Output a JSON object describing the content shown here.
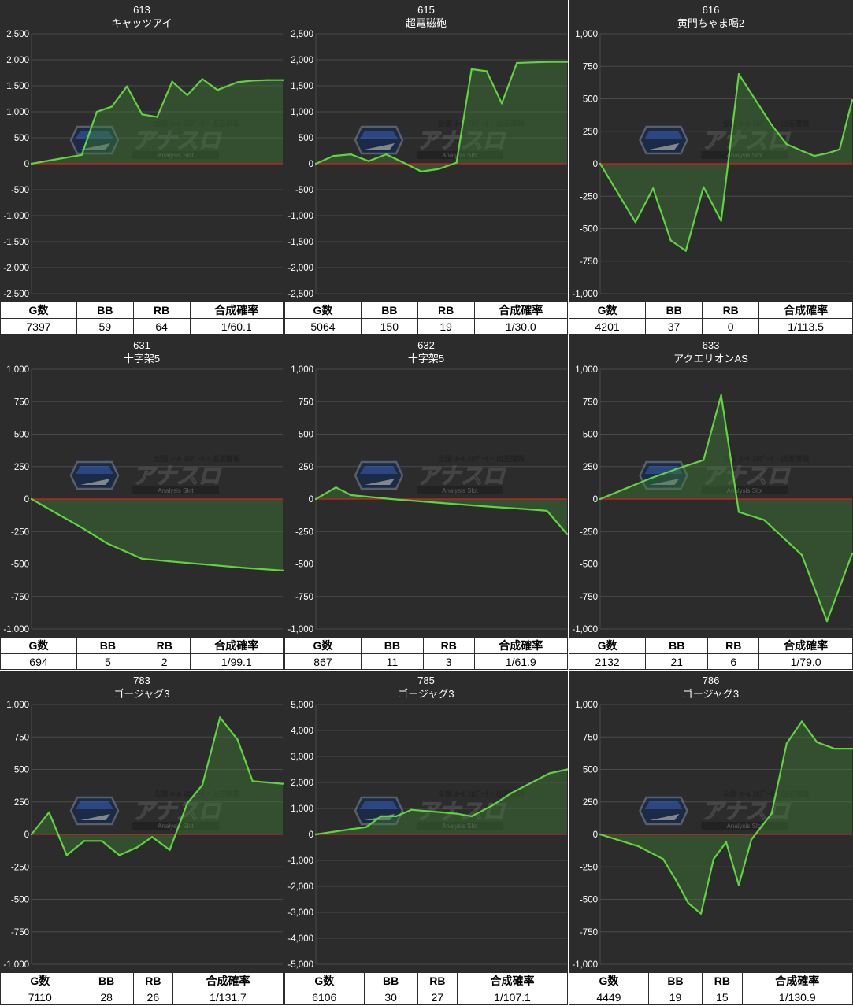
{
  "headers": [
    "G数",
    "BB",
    "RB",
    "合成確率"
  ],
  "watermark": {
    "top": "全国 ﾎｰﾙ ｽﾛﾃﾞｰﾀ・出玉情報",
    "main": "アナスロ",
    "sub": "Analysis Slot"
  },
  "chart_data": [
    {
      "type": "area",
      "number": "613",
      "name": "キャッツアイ",
      "ylim": [
        -2500,
        2500
      ],
      "yticks": [
        2500,
        2000,
        1500,
        1000,
        500,
        0,
        -500,
        -1000,
        -1500,
        -2000,
        -2500
      ],
      "series": [
        {
          "x": [
            0,
            0.07,
            0.14,
            0.2,
            0.26,
            0.32,
            0.38,
            0.44,
            0.5,
            0.56,
            0.62,
            0.68,
            0.74,
            0.82,
            0.88,
            0.94,
            1
          ],
          "values": [
            0,
            60,
            120,
            170,
            1000,
            1100,
            1490,
            950,
            900,
            1580,
            1320,
            1630,
            1420,
            1570,
            1600,
            1610,
            1610
          ]
        }
      ],
      "stats": {
        "g": "7397",
        "bb": "59",
        "rb": "64",
        "rate": "1/60.1"
      }
    },
    {
      "type": "area",
      "number": "615",
      "name": "超電磁砲",
      "ylim": [
        -2500,
        2500
      ],
      "yticks": [
        2500,
        2000,
        1500,
        1000,
        500,
        0,
        -500,
        -1000,
        -1500,
        -2000,
        -2500
      ],
      "series": [
        {
          "x": [
            0,
            0.07,
            0.14,
            0.21,
            0.28,
            0.35,
            0.42,
            0.49,
            0.56,
            0.62,
            0.68,
            0.74,
            0.8,
            0.86,
            0.93,
            1
          ],
          "values": [
            0,
            150,
            180,
            50,
            180,
            20,
            -150,
            -100,
            20,
            1820,
            1780,
            1160,
            1940,
            1950,
            1960,
            1960
          ]
        }
      ],
      "stats": {
        "g": "5064",
        "bb": "150",
        "rb": "19",
        "rate": "1/30.0"
      }
    },
    {
      "type": "area",
      "number": "616",
      "name": "黄門ちゃま喝2",
      "ylim": [
        -1000,
        1000
      ],
      "yticks": [
        1000,
        750,
        500,
        250,
        0,
        -250,
        -500,
        -750,
        -1000
      ],
      "series": [
        {
          "x": [
            0,
            0.14,
            0.21,
            0.28,
            0.34,
            0.41,
            0.48,
            0.55,
            0.68,
            0.74,
            0.8,
            0.85,
            0.9,
            0.95,
            1
          ],
          "values": [
            0,
            -450,
            -190,
            -590,
            -670,
            -180,
            -440,
            690,
            300,
            150,
            100,
            60,
            80,
            110,
            490
          ]
        }
      ],
      "stats": {
        "g": "4201",
        "bb": "37",
        "rb": "0",
        "rate": "1/113.5"
      }
    },
    {
      "type": "area",
      "number": "631",
      "name": "十字架5",
      "ylim": [
        -1000,
        1000
      ],
      "yticks": [
        1000,
        750,
        500,
        250,
        0,
        -250,
        -500,
        -750,
        -1000
      ],
      "series": [
        {
          "x": [
            0,
            0.1,
            0.2,
            0.3,
            0.44,
            0.55,
            0.7,
            0.85,
            1
          ],
          "values": [
            0,
            -110,
            -220,
            -340,
            -460,
            -480,
            -505,
            -530,
            -550
          ]
        }
      ],
      "stats": {
        "g": "694",
        "bb": "5",
        "rb": "2",
        "rate": "1/99.1"
      }
    },
    {
      "type": "area",
      "number": "632",
      "name": "十字架5",
      "ylim": [
        -1000,
        1000
      ],
      "yticks": [
        1000,
        750,
        500,
        250,
        0,
        -250,
        -500,
        -750,
        -1000
      ],
      "series": [
        {
          "x": [
            0,
            0.08,
            0.14,
            0.3,
            0.5,
            0.7,
            0.82,
            0.92,
            1
          ],
          "values": [
            0,
            90,
            30,
            0,
            -30,
            -60,
            -75,
            -90,
            -270
          ]
        }
      ],
      "stats": {
        "g": "867",
        "bb": "11",
        "rb": "3",
        "rate": "1/61.9"
      }
    },
    {
      "type": "area",
      "number": "633",
      "name": "アクエリオンAS",
      "ylim": [
        -1000,
        1000
      ],
      "yticks": [
        1000,
        750,
        500,
        250,
        0,
        -250,
        -500,
        -750,
        -1000
      ],
      "series": [
        {
          "x": [
            0,
            0.1,
            0.2,
            0.3,
            0.41,
            0.48,
            0.55,
            0.65,
            0.8,
            0.9,
            1
          ],
          "values": [
            0,
            80,
            160,
            230,
            300,
            800,
            -100,
            -160,
            -430,
            -940,
            -420
          ]
        }
      ],
      "stats": {
        "g": "2132",
        "bb": "21",
        "rb": "6",
        "rate": "1/79.0"
      }
    },
    {
      "type": "area",
      "number": "783",
      "name": "ゴージャグ3",
      "ylim": [
        -1000,
        1000
      ],
      "yticks": [
        1000,
        750,
        500,
        250,
        0,
        -250,
        -500,
        -750,
        -1000
      ],
      "series": [
        {
          "x": [
            0,
            0.07,
            0.14,
            0.21,
            0.28,
            0.35,
            0.42,
            0.48,
            0.55,
            0.62,
            0.68,
            0.75,
            0.82,
            0.88,
            0.94,
            1
          ],
          "values": [
            0,
            170,
            -160,
            -50,
            -50,
            -160,
            -100,
            -20,
            -120,
            240,
            380,
            900,
            730,
            410,
            400,
            390
          ]
        }
      ],
      "stats": {
        "g": "7110",
        "bb": "28",
        "rb": "26",
        "rate": "1/131.7"
      }
    },
    {
      "type": "area",
      "number": "785",
      "name": "ゴージャグ3",
      "ylim": [
        -5000,
        5000
      ],
      "yticks": [
        5000,
        4000,
        3000,
        2000,
        1000,
        0,
        -1000,
        -2000,
        -3000,
        -4000,
        -5000
      ],
      "series": [
        {
          "x": [
            0,
            0.07,
            0.14,
            0.2,
            0.26,
            0.32,
            0.38,
            0.44,
            0.5,
            0.56,
            0.62,
            0.7,
            0.78,
            0.86,
            0.93,
            1
          ],
          "values": [
            0,
            100,
            200,
            280,
            700,
            700,
            950,
            900,
            850,
            800,
            700,
            1100,
            1600,
            2000,
            2350,
            2500
          ]
        }
      ],
      "stats": {
        "g": "6106",
        "bb": "30",
        "rb": "27",
        "rate": "1/107.1"
      }
    },
    {
      "type": "area",
      "number": "786",
      "name": "ゴージャグ3",
      "ylim": [
        -1000,
        1000
      ],
      "yticks": [
        1000,
        750,
        500,
        250,
        0,
        -250,
        -500,
        -750,
        -1000
      ],
      "series": [
        {
          "x": [
            0,
            0.15,
            0.25,
            0.3,
            0.35,
            0.4,
            0.45,
            0.5,
            0.55,
            0.6,
            0.68,
            0.74,
            0.8,
            0.86,
            0.93,
            1
          ],
          "values": [
            0,
            -90,
            -190,
            -350,
            -530,
            -610,
            -190,
            -60,
            -390,
            -40,
            160,
            700,
            870,
            710,
            660,
            660
          ]
        }
      ],
      "stats": {
        "g": "4449",
        "bb": "19",
        "rb": "15",
        "rate": "1/130.9"
      }
    }
  ]
}
